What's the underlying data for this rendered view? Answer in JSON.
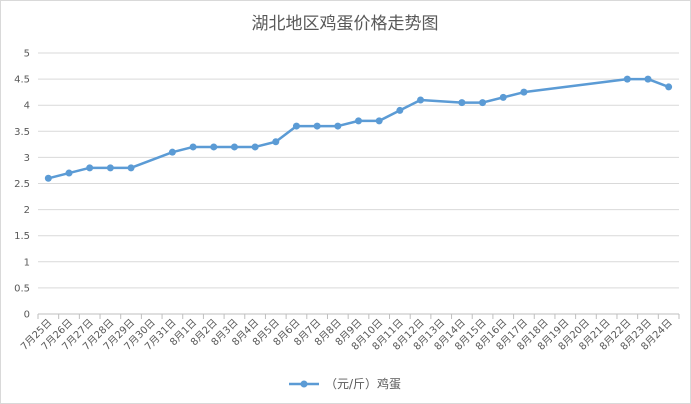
{
  "chart_data": {
    "type": "line",
    "title": "湖北地区鸡蛋价格走势图",
    "xlabel": "",
    "ylabel": "",
    "ylim": [
      0,
      5
    ],
    "yticks": [
      0,
      0.5,
      1,
      1.5,
      2,
      2.5,
      3,
      3.5,
      4,
      4.5,
      5
    ],
    "ytick_labels": [
      "0",
      "0.5",
      "1",
      "1.5",
      "2",
      "2.5",
      "3",
      "3.5",
      "4",
      "4.5",
      "5"
    ],
    "grid": true,
    "legend_position": "bottom",
    "categories": [
      "7月25日",
      "7月26日",
      "7月27日",
      "7月28日",
      "7月29日",
      "7月30日",
      "7月31日",
      "8月1日",
      "8月2日",
      "8月3日",
      "8月4日",
      "8月5日",
      "8月6日",
      "8月7日",
      "8月8日",
      "8月9日",
      "8月10日",
      "8月11日",
      "8月12日",
      "8月13日",
      "8月14日",
      "8月15日",
      "8月16日",
      "8月17日",
      "8月18日",
      "8月19日",
      "8月20日",
      "8月21日",
      "8月22日",
      "8月23日",
      "8月24日"
    ],
    "series": [
      {
        "name": "（元/斤）鸡蛋",
        "color": "#5b9bd5",
        "points": [
          {
            "x": "7月25日",
            "y": 2.6
          },
          {
            "x": "7月26日",
            "y": 2.7
          },
          {
            "x": "7月27日",
            "y": 2.8
          },
          {
            "x": "7月28日",
            "y": 2.8
          },
          {
            "x": "7月29日",
            "y": 2.8
          },
          {
            "x": "7月31日",
            "y": 3.1
          },
          {
            "x": "8月1日",
            "y": 3.2
          },
          {
            "x": "8月2日",
            "y": 3.2
          },
          {
            "x": "8月3日",
            "y": 3.2
          },
          {
            "x": "8月4日",
            "y": 3.2
          },
          {
            "x": "8月5日",
            "y": 3.3
          },
          {
            "x": "8月6日",
            "y": 3.6
          },
          {
            "x": "8月7日",
            "y": 3.6
          },
          {
            "x": "8月8日",
            "y": 3.6
          },
          {
            "x": "8月9日",
            "y": 3.7
          },
          {
            "x": "8月10日",
            "y": 3.7
          },
          {
            "x": "8月11日",
            "y": 3.9
          },
          {
            "x": "8月12日",
            "y": 4.1
          },
          {
            "x": "8月14日",
            "y": 4.05
          },
          {
            "x": "8月15日",
            "y": 4.05
          },
          {
            "x": "8月16日",
            "y": 4.15
          },
          {
            "x": "8月17日",
            "y": 4.25
          },
          {
            "x": "8月22日",
            "y": 4.5
          },
          {
            "x": "8月23日",
            "y": 4.5
          },
          {
            "x": "8月24日",
            "y": 4.35
          }
        ]
      }
    ]
  }
}
